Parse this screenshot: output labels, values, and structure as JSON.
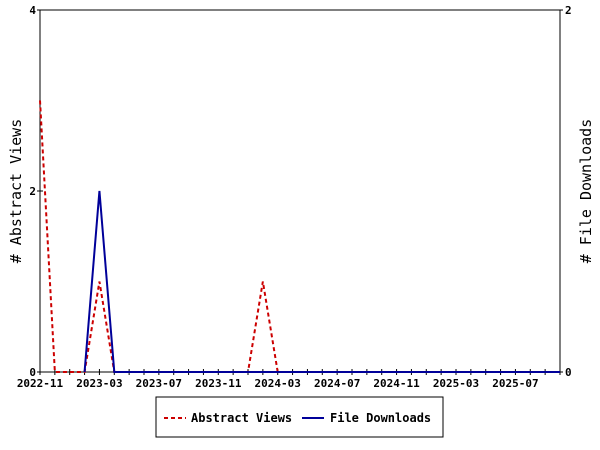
{
  "chart_data": {
    "type": "line",
    "x_labels": [
      "2022-11",
      "2023-03",
      "2023-07",
      "2023-11",
      "2024-03",
      "2024-07",
      "2024-11",
      "2025-03",
      "2025-07"
    ],
    "x": [
      "2022-11",
      "2022-12",
      "2023-01",
      "2023-02",
      "2023-03",
      "2023-04",
      "2023-05",
      "2023-06",
      "2023-07",
      "2023-08",
      "2023-09",
      "2023-10",
      "2023-11",
      "2023-12",
      "2024-01",
      "2024-02",
      "2024-03",
      "2024-04",
      "2024-05",
      "2024-06",
      "2024-07",
      "2024-08",
      "2024-09",
      "2024-10",
      "2024-11",
      "2024-12",
      "2025-01",
      "2025-02",
      "2025-03",
      "2025-04",
      "2025-05",
      "2025-06",
      "2025-07",
      "2025-08",
      "2025-09",
      "2025-10"
    ],
    "series": [
      {
        "name": "Abstract Views",
        "axis": "left",
        "color": "#cc0000",
        "style": "dashed",
        "values": [
          3,
          0,
          0,
          0,
          1,
          0,
          0,
          0,
          0,
          0,
          0,
          0,
          0,
          0,
          0,
          1,
          0,
          0,
          0,
          0,
          0,
          0,
          0,
          0,
          0,
          0,
          0,
          0,
          0,
          0,
          0,
          0,
          0,
          0,
          0,
          0
        ]
      },
      {
        "name": "File Downloads",
        "axis": "right",
        "color": "#000099",
        "style": "solid",
        "values": [
          null,
          null,
          null,
          0,
          1,
          0,
          0,
          0,
          0,
          0,
          0,
          0,
          0,
          0,
          0,
          0,
          0,
          0,
          0,
          0,
          0,
          0,
          0,
          0,
          0,
          0,
          0,
          0,
          0,
          0,
          0,
          0,
          0,
          0,
          0,
          0
        ]
      }
    ],
    "y_left": {
      "label": "# Abstract Views",
      "ylim": [
        0,
        4
      ],
      "ticks": [
        0,
        2,
        4
      ]
    },
    "y_right": {
      "label": "# File Downloads",
      "ylim": [
        0,
        2
      ],
      "ticks": [
        0,
        2
      ]
    },
    "legend_placement": "bottom",
    "grid": false
  }
}
